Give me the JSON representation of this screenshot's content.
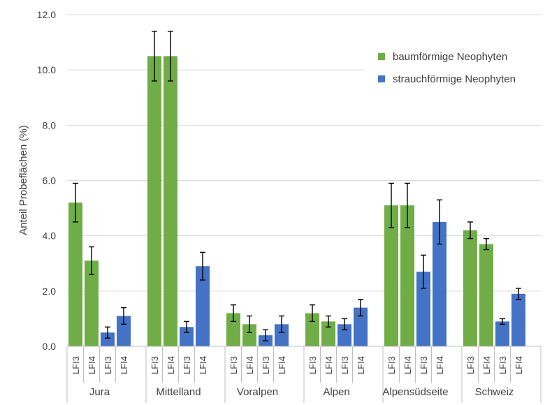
{
  "chart_data": {
    "type": "bar",
    "title": "",
    "xlabel": "",
    "ylabel": "Anteil Probeflächen (%)",
    "ylim": [
      0,
      12
    ],
    "yticks": [
      "0.0",
      "2.0",
      "4.0",
      "6.0",
      "8.0",
      "10.0",
      "12.0"
    ],
    "grid": true,
    "legend_position": "top-right",
    "colors": {
      "tree": "#70AD47",
      "shrub": "#4472C4",
      "grid": "#d9d9d9",
      "error": "#000000",
      "axis": "#bfbfbf"
    },
    "series": [
      {
        "name": "baumförmige Neophyten",
        "key": "tree"
      },
      {
        "name": "strauchförmige Neophyten",
        "key": "shrub"
      }
    ],
    "groups": [
      {
        "label": "Jura",
        "bars": [
          {
            "sub": "LFI3",
            "series": "tree",
            "value": 5.2,
            "err": 0.7
          },
          {
            "sub": "LFI4",
            "series": "tree",
            "value": 3.1,
            "err": 0.5
          },
          {
            "sub": "LFI3",
            "series": "shrub",
            "value": 0.5,
            "err": 0.2
          },
          {
            "sub": "LFI4",
            "series": "shrub",
            "value": 1.1,
            "err": 0.3
          }
        ]
      },
      {
        "label": "Mittelland",
        "bars": [
          {
            "sub": "LFI3",
            "series": "tree",
            "value": 10.5,
            "err": 0.9
          },
          {
            "sub": "LFI4",
            "series": "tree",
            "value": 10.5,
            "err": 0.9
          },
          {
            "sub": "LFI3",
            "series": "shrub",
            "value": 0.7,
            "err": 0.2
          },
          {
            "sub": "LFI4",
            "series": "shrub",
            "value": 2.9,
            "err": 0.5
          }
        ]
      },
      {
        "label": "Voralpen",
        "bars": [
          {
            "sub": "LFI3",
            "series": "tree",
            "value": 1.2,
            "err": 0.3
          },
          {
            "sub": "LFI4",
            "series": "tree",
            "value": 0.8,
            "err": 0.3
          },
          {
            "sub": "LFI3",
            "series": "shrub",
            "value": 0.4,
            "err": 0.2
          },
          {
            "sub": "LFI4",
            "series": "shrub",
            "value": 0.8,
            "err": 0.3
          }
        ]
      },
      {
        "label": "Alpen",
        "bars": [
          {
            "sub": "LFI3",
            "series": "tree",
            "value": 1.2,
            "err": 0.3
          },
          {
            "sub": "LFI4",
            "series": "tree",
            "value": 0.9,
            "err": 0.2
          },
          {
            "sub": "LFI3",
            "series": "shrub",
            "value": 0.8,
            "err": 0.2
          },
          {
            "sub": "LFI4",
            "series": "shrub",
            "value": 1.4,
            "err": 0.3
          }
        ]
      },
      {
        "label": "Alpensüdseite",
        "bars": [
          {
            "sub": "LFI3",
            "series": "tree",
            "value": 5.1,
            "err": 0.8
          },
          {
            "sub": "LFI4",
            "series": "tree",
            "value": 5.1,
            "err": 0.8
          },
          {
            "sub": "LFI3",
            "series": "shrub",
            "value": 2.7,
            "err": 0.6
          },
          {
            "sub": "LFI4",
            "series": "shrub",
            "value": 4.5,
            "err": 0.8
          }
        ]
      },
      {
        "label": "Schweiz",
        "bars": [
          {
            "sub": "LFI3",
            "series": "tree",
            "value": 4.2,
            "err": 0.3
          },
          {
            "sub": "LFI4",
            "series": "tree",
            "value": 3.7,
            "err": 0.2
          },
          {
            "sub": "LFI3",
            "series": "shrub",
            "value": 0.9,
            "err": 0.1
          },
          {
            "sub": "LFI4",
            "series": "shrub",
            "value": 1.9,
            "err": 0.2
          }
        ]
      }
    ]
  }
}
